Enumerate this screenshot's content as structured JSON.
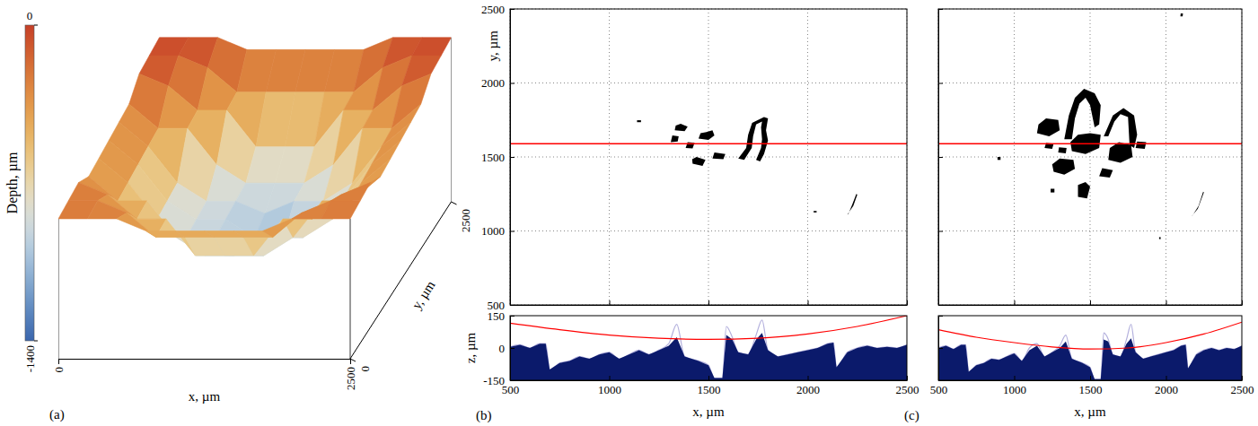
{
  "chart_data": [
    {
      "type": "surface",
      "panel": "(a)",
      "x_label": "x, µm",
      "y_label": "y, µm",
      "colorbar_label": "Depth, µm",
      "xlim": [
        0,
        2500
      ],
      "ylim": [
        0,
        2500
      ],
      "xticks": [
        0,
        2500
      ],
      "yticks": [
        0,
        2500
      ],
      "clim": [
        -1400,
        0
      ],
      "cticks": [
        -1400,
        0
      ],
      "x": [
        0,
        250,
        500,
        750,
        1000,
        1250,
        1500,
        1750,
        2000,
        2250,
        2500
      ],
      "y": [
        0,
        250,
        500,
        750,
        1000,
        1250,
        1500,
        1750,
        2000,
        2250,
        2500
      ],
      "z": [
        [
          -250,
          -250,
          -250,
          -350,
          -350,
          -350,
          -350,
          -350,
          -250,
          -250,
          -250
        ],
        [
          -230,
          -230,
          -330,
          -530,
          -530,
          -530,
          -530,
          -530,
          -330,
          -230,
          -230
        ],
        [
          -210,
          -310,
          -510,
          -510,
          -810,
          -810,
          -810,
          -510,
          -510,
          -310,
          -210
        ],
        [
          -290,
          -490,
          -490,
          -790,
          -940,
          -940,
          -940,
          -790,
          -490,
          -490,
          -290
        ],
        [
          -270,
          -470,
          -770,
          -920,
          -920,
          -920,
          -920,
          -920,
          -770,
          -470,
          -270
        ],
        [
          -250,
          -450,
          -750,
          -900,
          -900,
          -1050,
          -1050,
          -900,
          -750,
          -450,
          -250
        ],
        [
          -230,
          -430,
          -730,
          -880,
          -880,
          -980,
          -880,
          -880,
          -730,
          -430,
          -230
        ],
        [
          -210,
          -410,
          -410,
          -710,
          -860,
          -860,
          -860,
          -710,
          -410,
          -410,
          -210
        ],
        [
          -90,
          -190,
          -390,
          -390,
          -690,
          -690,
          -690,
          -390,
          -390,
          -190,
          -90
        ],
        [
          -70,
          -70,
          -170,
          -370,
          -370,
          -370,
          -370,
          -370,
          -170,
          -70,
          -70
        ],
        [
          -50,
          -50,
          -50,
          -150,
          -150,
          -150,
          -150,
          -150,
          -50,
          -50,
          -50
        ]
      ]
    },
    {
      "type": "map",
      "panel": "(b)",
      "y_label": "y, µm",
      "xlim": [
        500,
        2500
      ],
      "ylim": [
        500,
        2500
      ],
      "xticks": [
        500,
        1000,
        1500,
        2000,
        2500
      ],
      "yticks": [
        500,
        1000,
        1500,
        2000,
        2500
      ],
      "grid": true,
      "tick_labels": "y",
      "section_y": 1590,
      "color": "#000000",
      "regions": [
        {
          "x": [
            1140,
            1160,
            1160,
            1140
          ],
          "y": [
            1735,
            1735,
            1748,
            1748
          ]
        },
        {
          "x": [
            1310,
            1345,
            1350,
            1318
          ],
          "y": [
            1600,
            1605,
            1640,
            1645
          ]
        },
        {
          "x": [
            1330,
            1380,
            1395,
            1360,
            1335
          ],
          "y": [
            1680,
            1675,
            1705,
            1725,
            1712
          ]
        },
        {
          "x": [
            1385,
            1420,
            1430,
            1395
          ],
          "y": [
            1560,
            1558,
            1595,
            1600
          ]
        },
        {
          "x": [
            1450,
            1500,
            1530,
            1520,
            1490,
            1460
          ],
          "y": [
            1625,
            1615,
            1645,
            1680,
            1668,
            1660
          ]
        },
        {
          "x": [
            1420,
            1470,
            1485,
            1440,
            1418
          ],
          "y": [
            1455,
            1440,
            1480,
            1500,
            1485
          ]
        },
        {
          "x": [
            1520,
            1575,
            1585,
            1530
          ],
          "y": [
            1490,
            1485,
            1520,
            1530
          ]
        },
        {
          "x": [
            1650,
            1690,
            1700,
            1720,
            1780,
            1800,
            1790,
            1800,
            1780,
            1760,
            1740,
            1765,
            1770,
            1765,
            1770,
            1740,
            1725,
            1718,
            1680
          ],
          "y": [
            1490,
            1560,
            1650,
            1730,
            1770,
            1760,
            1680,
            1610,
            1520,
            1470,
            1480,
            1560,
            1620,
            1700,
            1740,
            1720,
            1640,
            1560,
            1480
          ]
        },
        {
          "x": [
            2200,
            2230,
            2250,
            2245,
            2225,
            2205
          ],
          "y": [
            1110,
            1170,
            1245,
            1250,
            1180,
            1115
          ]
        },
        {
          "x": [
            2030,
            2045,
            2045,
            2030
          ],
          "y": [
            1125,
            1125,
            1135,
            1135
          ]
        }
      ]
    },
    {
      "type": "line",
      "x_label": "x, µm",
      "y_label": "z, µm",
      "xlim": [
        500,
        2500
      ],
      "ylim": [
        -150,
        150
      ],
      "xticks": [
        500,
        1000,
        1500,
        2000,
        2500
      ],
      "yticks": [
        -150,
        0,
        150
      ],
      "series": [
        {
          "type": "line",
          "color": "#b3b0dd",
          "x": [
            500,
            550,
            600,
            650,
            680,
            700,
            750,
            800,
            850,
            900,
            950,
            1000,
            1050,
            1100,
            1150,
            1200,
            1250,
            1300,
            1340,
            1380,
            1450,
            1500,
            1530,
            1570,
            1590,
            1620,
            1650,
            1700,
            1740,
            1770,
            1800,
            1850,
            1900,
            1950,
            2000,
            2050,
            2100,
            2130,
            2145,
            2200,
            2250,
            2300,
            2350,
            2400,
            2450,
            2500
          ],
          "values": [
            5,
            15,
            0,
            20,
            20,
            -100,
            -70,
            -60,
            -40,
            -50,
            -30,
            -20,
            -50,
            -30,
            -10,
            -30,
            -10,
            20,
            110,
            -40,
            -60,
            -80,
            -140,
            -140,
            100,
            50,
            -20,
            -30,
            60,
            130,
            -10,
            -40,
            -30,
            -20,
            -10,
            0,
            20,
            25,
            -90,
            -20,
            0,
            10,
            0,
            5,
            0,
            15
          ]
        },
        {
          "type": "area",
          "color": "#0b1a6b",
          "x": [
            500,
            550,
            600,
            650,
            680,
            700,
            750,
            800,
            850,
            900,
            950,
            1000,
            1050,
            1100,
            1150,
            1200,
            1250,
            1300,
            1340,
            1380,
            1450,
            1500,
            1530,
            1570,
            1590,
            1620,
            1650,
            1700,
            1740,
            1770,
            1800,
            1850,
            1900,
            1950,
            2000,
            2050,
            2100,
            2130,
            2145,
            2200,
            2250,
            2300,
            2350,
            2400,
            2450,
            2500
          ],
          "values": [
            5,
            15,
            0,
            20,
            20,
            -100,
            -70,
            -60,
            -40,
            -50,
            -30,
            -20,
            -50,
            -30,
            -10,
            -30,
            -10,
            10,
            50,
            -40,
            -60,
            -80,
            -140,
            -140,
            60,
            40,
            -20,
            -30,
            40,
            70,
            -10,
            -40,
            -30,
            -20,
            -10,
            0,
            20,
            25,
            -90,
            -20,
            0,
            10,
            0,
            5,
            0,
            15
          ]
        },
        {
          "type": "line",
          "color": "#ff0000",
          "x": [
            500,
            750,
            1000,
            1250,
            1500,
            1750,
            2000,
            2250,
            2500
          ],
          "values": [
            115,
            85,
            60,
            45,
            40,
            45,
            65,
            100,
            150
          ]
        }
      ]
    },
    {
      "type": "map",
      "panel": "(c)",
      "xlim": [
        500,
        2500
      ],
      "ylim": [
        500,
        2500
      ],
      "xticks": [
        500,
        1000,
        1500,
        2000,
        2500
      ],
      "yticks": [
        500,
        1000,
        1500,
        2000,
        2500
      ],
      "grid": true,
      "tick_labels": false,
      "section_y": 1590,
      "color": "#000000",
      "regions": [
        {
          "x": [
            1150,
            1230,
            1300,
            1290,
            1210,
            1160
          ],
          "y": [
            1660,
            1640,
            1680,
            1750,
            1760,
            1720
          ]
        },
        {
          "x": [
            1330,
            1360,
            1400,
            1460,
            1530,
            1570,
            1560,
            1530,
            1500,
            1470,
            1430,
            1400,
            1380
          ],
          "y": [
            1620,
            1780,
            1900,
            1960,
            1930,
            1850,
            1720,
            1700,
            1850,
            1900,
            1860,
            1760,
            1620
          ]
        },
        {
          "x": [
            1380,
            1470,
            1560,
            1570,
            1500,
            1420,
            1370
          ],
          "y": [
            1540,
            1520,
            1560,
            1650,
            1660,
            1650,
            1600
          ]
        },
        {
          "x": [
            1590,
            1650,
            1720,
            1790,
            1810,
            1790,
            1760,
            1750,
            1700,
            1660,
            1620
          ],
          "y": [
            1640,
            1780,
            1830,
            1780,
            1650,
            1560,
            1580,
            1770,
            1790,
            1740,
            1640
          ]
        },
        {
          "x": [
            1620,
            1700,
            1780,
            1770,
            1690,
            1630
          ],
          "y": [
            1480,
            1460,
            1500,
            1580,
            1600,
            1560
          ]
        },
        {
          "x": [
            1260,
            1330,
            1400,
            1390,
            1300,
            1250
          ],
          "y": [
            1400,
            1380,
            1420,
            1480,
            1490,
            1450
          ]
        },
        {
          "x": [
            1420,
            1480,
            1500,
            1470,
            1420
          ],
          "y": [
            1230,
            1220,
            1300,
            1330,
            1310
          ]
        },
        {
          "x": [
            1560,
            1630,
            1650,
            1580
          ],
          "y": [
            1370,
            1360,
            1410,
            1425
          ]
        },
        {
          "x": [
            1240,
            1265,
            1265,
            1240
          ],
          "y": [
            1260,
            1260,
            1285,
            1285
          ]
        },
        {
          "x": [
            1290,
            1340,
            1345,
            1295
          ],
          "y": [
            1530,
            1525,
            1560,
            1565
          ]
        },
        {
          "x": [
            2170,
            2210,
            2250,
            2245,
            2215,
            2175
          ],
          "y": [
            1100,
            1150,
            1260,
            1265,
            1170,
            1105
          ]
        },
        {
          "x": [
            890,
            910,
            910,
            890
          ],
          "y": [
            1480,
            1480,
            1500,
            1500
          ]
        },
        {
          "x": [
            2095,
            2110,
            2112,
            2097
          ],
          "y": [
            2450,
            2450,
            2470,
            2470
          ]
        },
        {
          "x": [
            1955,
            1965,
            1965,
            1955
          ],
          "y": [
            945,
            945,
            958,
            958
          ]
        },
        {
          "x": [
            1200,
            1250,
            1260,
            1210
          ],
          "y": [
            1560,
            1555,
            1590,
            1595
          ]
        },
        {
          "x": [
            1800,
            1860,
            1870,
            1810
          ],
          "y": [
            1560,
            1555,
            1600,
            1605
          ]
        }
      ]
    },
    {
      "type": "line",
      "x_label": "x, µm",
      "xlim": [
        500,
        2500
      ],
      "ylim": [
        -150,
        150
      ],
      "xticks": [
        500,
        1000,
        1500,
        2000,
        2500
      ],
      "yticks": [
        -150,
        0,
        150
      ],
      "tick_labels": "x",
      "series": [
        {
          "type": "line",
          "color": "#b3b0dd",
          "x": [
            500,
            550,
            600,
            650,
            680,
            700,
            750,
            800,
            850,
            900,
            950,
            1000,
            1050,
            1100,
            1150,
            1200,
            1250,
            1300,
            1340,
            1380,
            1450,
            1500,
            1530,
            1570,
            1590,
            1620,
            1650,
            1700,
            1740,
            1770,
            1800,
            1850,
            1900,
            1950,
            2000,
            2050,
            2100,
            2130,
            2145,
            2200,
            2250,
            2300,
            2350,
            2400,
            2450,
            2500
          ],
          "values": [
            0,
            10,
            -5,
            15,
            15,
            -110,
            -80,
            -70,
            -50,
            -55,
            -40,
            -25,
            -60,
            0,
            20,
            -40,
            -20,
            10,
            60,
            -50,
            -70,
            -90,
            -145,
            -145,
            70,
            40,
            -30,
            -40,
            40,
            110,
            -20,
            -50,
            -40,
            -30,
            -20,
            -10,
            10,
            15,
            -95,
            -30,
            -10,
            0,
            -10,
            0,
            -5,
            10
          ]
        },
        {
          "type": "area",
          "color": "#0b1a6b",
          "x": [
            500,
            550,
            600,
            650,
            680,
            700,
            750,
            800,
            850,
            900,
            950,
            1000,
            1050,
            1100,
            1150,
            1200,
            1250,
            1300,
            1340,
            1380,
            1450,
            1500,
            1530,
            1570,
            1590,
            1620,
            1650,
            1700,
            1740,
            1770,
            1800,
            1850,
            1900,
            1950,
            2000,
            2050,
            2100,
            2130,
            2145,
            2200,
            2250,
            2300,
            2350,
            2400,
            2450,
            2500
          ],
          "values": [
            0,
            10,
            -5,
            15,
            15,
            -110,
            -80,
            -70,
            -50,
            -55,
            -40,
            -25,
            -60,
            -10,
            10,
            -40,
            -20,
            0,
            30,
            -50,
            -70,
            -90,
            -145,
            -145,
            40,
            30,
            -30,
            -40,
            20,
            45,
            -20,
            -50,
            -40,
            -30,
            -20,
            -10,
            10,
            15,
            -95,
            -30,
            -10,
            0,
            -10,
            0,
            -5,
            10
          ]
        },
        {
          "type": "line",
          "color": "#ff0000",
          "x": [
            500,
            750,
            1000,
            1250,
            1500,
            1750,
            2000,
            2250,
            2500
          ],
          "values": [
            85,
            50,
            25,
            5,
            -5,
            0,
            25,
            65,
            120
          ]
        }
      ]
    }
  ]
}
